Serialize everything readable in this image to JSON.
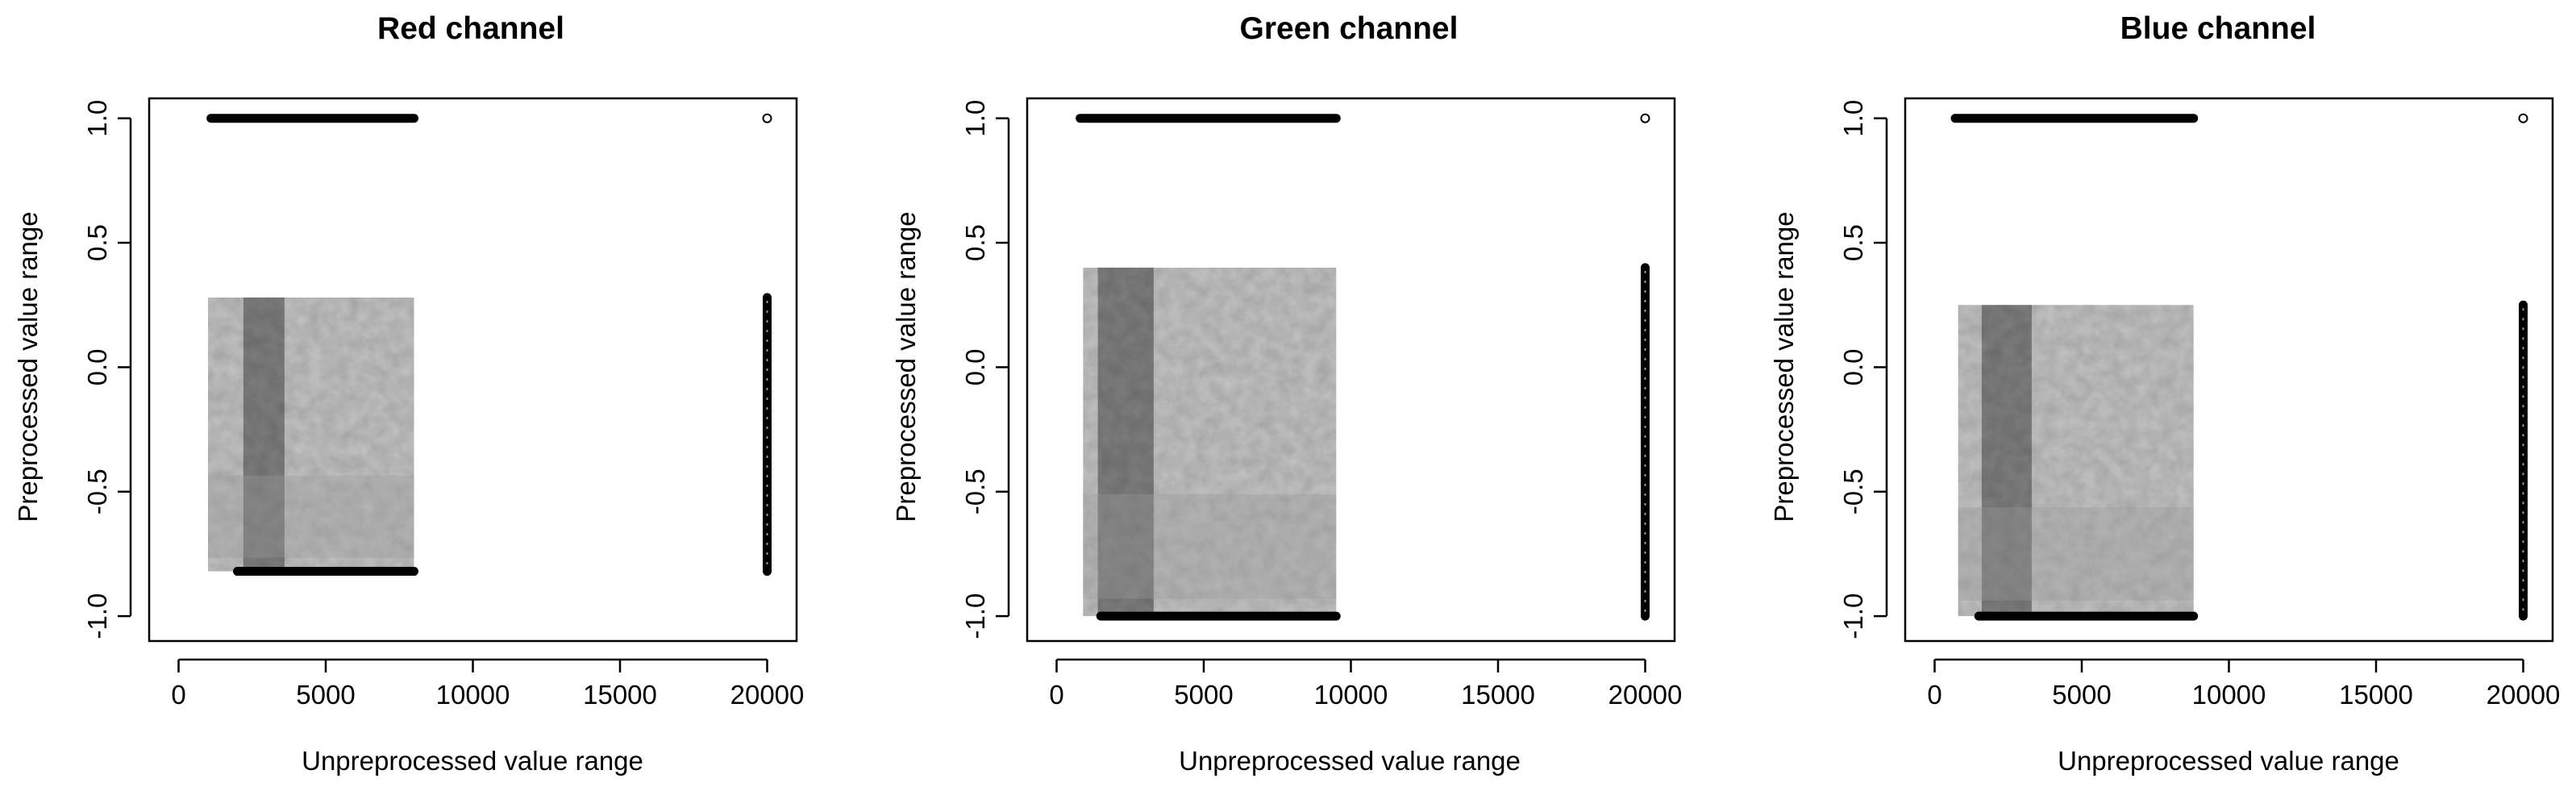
{
  "chart_data": [
    {
      "type": "scatter",
      "title": "Red channel",
      "xlabel": "Unpreprocessed value range",
      "ylabel": "Preprocessed value range",
      "xlim": [
        -1000,
        21000
      ],
      "ylim": [
        -1.1,
        1.08
      ],
      "xticks": [
        "0",
        "5000",
        "10000",
        "15000",
        "20000"
      ],
      "yticks": [
        "-1.0",
        "-0.5",
        "0.0",
        "0.5",
        "1.0"
      ],
      "grid": false,
      "series": [
        {
          "kind": "line-band",
          "x0": 1100,
          "x1": 8000,
          "y": 1.0
        },
        {
          "kind": "density-block",
          "x0": 1000,
          "x1": 8000,
          "y0": -0.82,
          "y1": 0.28,
          "dark_band_x": [
            2200,
            3600
          ]
        },
        {
          "kind": "line-band",
          "x0": 2000,
          "x1": 8000,
          "y": -0.82
        },
        {
          "kind": "vertical-column",
          "x": 20000,
          "y0": -0.82,
          "y1": 0.28
        },
        {
          "kind": "point",
          "x": 20000,
          "y": 1.0
        }
      ]
    },
    {
      "type": "scatter",
      "title": "Green channel",
      "xlabel": "Unpreprocessed value range",
      "ylabel": "Preprocessed value range",
      "xlim": [
        -1000,
        21000
      ],
      "ylim": [
        -1.1,
        1.08
      ],
      "xticks": [
        "0",
        "5000",
        "10000",
        "15000",
        "20000"
      ],
      "yticks": [
        "-1.0",
        "-0.5",
        "0.0",
        "0.5",
        "1.0"
      ],
      "grid": false,
      "series": [
        {
          "kind": "line-band",
          "x0": 800,
          "x1": 9500,
          "y": 1.0
        },
        {
          "kind": "density-block",
          "x0": 900,
          "x1": 9500,
          "y0": -1.0,
          "y1": 0.4,
          "dark_band_x": [
            1400,
            3300
          ]
        },
        {
          "kind": "line-band",
          "x0": 1500,
          "x1": 9500,
          "y": -1.0
        },
        {
          "kind": "vertical-column",
          "x": 20000,
          "y0": -1.0,
          "y1": 0.4
        },
        {
          "kind": "point",
          "x": 20000,
          "y": 1.0
        }
      ]
    },
    {
      "type": "scatter",
      "title": "Blue channel",
      "xlabel": "Unpreprocessed value range",
      "ylabel": "Preprocessed value range",
      "xlim": [
        -1000,
        21000
      ],
      "ylim": [
        -1.1,
        1.08
      ],
      "xticks": [
        "0",
        "5000",
        "10000",
        "15000",
        "20000"
      ],
      "yticks": [
        "-1.0",
        "-0.5",
        "0.0",
        "0.5",
        "1.0"
      ],
      "grid": false,
      "series": [
        {
          "kind": "line-band",
          "x0": 700,
          "x1": 8800,
          "y": 1.0
        },
        {
          "kind": "density-block",
          "x0": 800,
          "x1": 8800,
          "y0": -1.0,
          "y1": 0.25,
          "dark_band_x": [
            1600,
            3300
          ]
        },
        {
          "kind": "line-band",
          "x0": 1500,
          "x1": 8800,
          "y": -1.0
        },
        {
          "kind": "vertical-column",
          "x": 20000,
          "y0": -1.0,
          "y1": 0.25
        },
        {
          "kind": "point",
          "x": 20000,
          "y": 1.0
        }
      ]
    }
  ]
}
